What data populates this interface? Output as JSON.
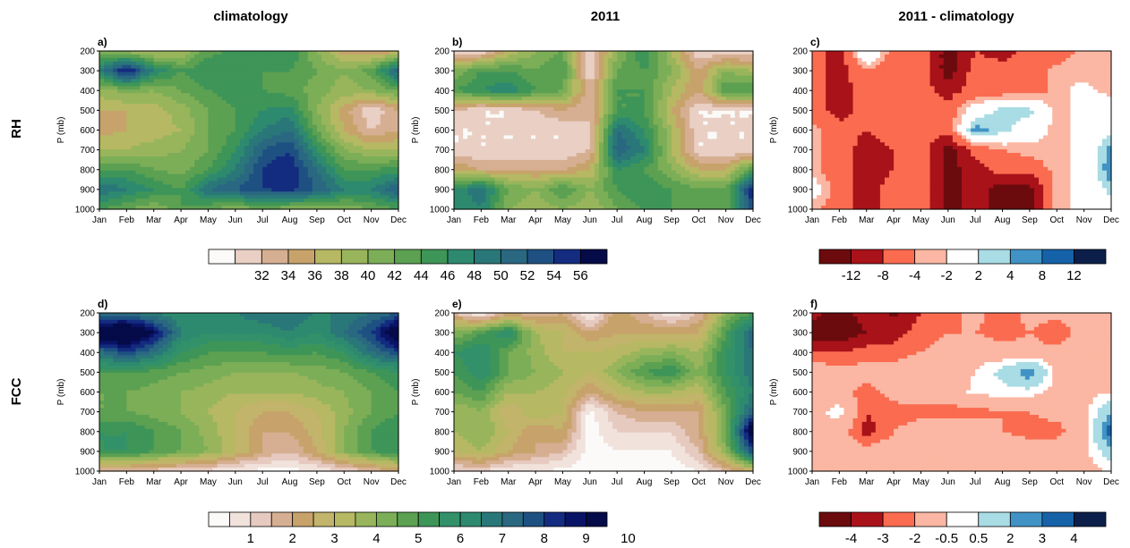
{
  "figure": {
    "column_titles": [
      "climatology",
      "2011",
      "2011 - climatology"
    ],
    "row_labels": [
      "RH",
      "FCC"
    ]
  },
  "scales": {
    "rh": {
      "colors": [
        "#FBFAF8",
        "#E9CFC4",
        "#D6AF92",
        "#C7A36B",
        "#B6B863",
        "#98B55C",
        "#7CAE57",
        "#5CA052",
        "#3E9558",
        "#2E8A6E",
        "#2A7779",
        "#2A6881",
        "#1E5182",
        "#142C80",
        "#050A48"
      ],
      "thresholds": [
        30,
        32,
        34,
        36,
        38,
        40,
        42,
        44,
        46,
        48,
        50,
        52,
        54,
        56
      ],
      "labels": [
        "32",
        "34",
        "36",
        "38",
        "40",
        "42",
        "44",
        "46",
        "48",
        "50",
        "52",
        "54",
        "56"
      ]
    },
    "rh_diff": {
      "colors": [
        "#6B0B0E",
        "#A91219",
        "#FA6B50",
        "#FBB7A3",
        "#FFFFFF",
        "#A9DCE4",
        "#4193C6",
        "#1662A8",
        "#0B1F4A"
      ],
      "thresholds": [
        -12,
        -8,
        -4,
        -2,
        2,
        4,
        8,
        12
      ],
      "labels": [
        "-12",
        "-8",
        "-4",
        "-2",
        "2",
        "4",
        "8",
        "12"
      ]
    },
    "fcc": {
      "colors": [
        "#FBFAF8",
        "#F1E2DC",
        "#E6CAC0",
        "#D6AF92",
        "#C7A36B",
        "#C2B46A",
        "#B6B863",
        "#98B55C",
        "#7CAE57",
        "#5CA052",
        "#3E9558",
        "#33916A",
        "#2E8A6E",
        "#2A7779",
        "#2A6881",
        "#1E5182",
        "#142C80",
        "#0A1466",
        "#050A48"
      ],
      "thresholds": [
        0.5,
        1,
        1.5,
        2,
        2.5,
        3,
        3.5,
        4,
        4.5,
        5,
        5.5,
        6,
        6.5,
        7,
        7.5,
        8,
        8.5,
        9,
        9.5,
        10
      ],
      "labels": [
        "1",
        "2",
        "3",
        "4",
        "5",
        "6",
        "7",
        "8",
        "9",
        "10"
      ]
    },
    "fcc_diff": {
      "colors": [
        "#6B0B0E",
        "#A91219",
        "#FA6B50",
        "#FBB7A3",
        "#FFFFFF",
        "#A9DCE4",
        "#4193C6",
        "#1662A8",
        "#0B1F4A"
      ],
      "thresholds": [
        -4,
        -3,
        -2,
        -0.5,
        0.5,
        2,
        3,
        4
      ],
      "labels": [
        "-4",
        "-3",
        "-2",
        "-0.5",
        "0.5",
        "2",
        "3",
        "4"
      ]
    }
  },
  "chart_data": [
    {
      "panel": "a)",
      "type": "heatmap",
      "variable": "RH",
      "scale": "rh",
      "x": [
        "Jan",
        "Feb",
        "Mar",
        "Apr",
        "May",
        "Jun",
        "Jul",
        "Aug",
        "Sep",
        "Oct",
        "Nov",
        "Dec"
      ],
      "y": [
        200,
        300,
        400,
        500,
        600,
        700,
        800,
        900,
        1000
      ],
      "ylabel": "P (mb)",
      "ylim": [
        200,
        1000
      ],
      "z": [
        [
          41,
          39,
          37,
          38,
          43,
          45,
          44,
          46,
          40,
          35,
          34,
          35
        ],
        [
          48,
          57,
          48,
          44,
          46,
          45,
          44,
          44,
          42,
          40,
          43,
          52
        ],
        [
          39,
          41,
          40,
          42,
          44,
          45,
          44,
          43,
          41,
          39,
          40,
          42
        ],
        [
          36,
          36,
          37,
          39,
          42,
          44,
          46,
          47,
          40,
          35,
          30,
          34
        ],
        [
          35,
          36,
          37,
          38,
          42,
          44,
          48,
          50,
          42,
          36,
          32,
          34
        ],
        [
          38,
          38,
          39,
          40,
          42,
          46,
          52,
          54,
          46,
          40,
          38,
          38
        ],
        [
          44,
          44,
          42,
          41,
          44,
          48,
          54,
          56,
          50,
          44,
          44,
          45
        ],
        [
          50,
          48,
          46,
          44,
          50,
          52,
          54,
          55,
          52,
          48,
          48,
          52
        ],
        [
          44,
          42,
          40,
          44,
          42,
          40,
          42,
          40,
          40,
          40,
          42,
          44
        ]
      ]
    },
    {
      "panel": "b)",
      "type": "heatmap",
      "variable": "RH",
      "scale": "rh",
      "x": [
        "Jan",
        "Feb",
        "Mar",
        "Apr",
        "May",
        "Jun",
        "Jul",
        "Aug",
        "Sep",
        "Oct",
        "Nov",
        "Dec"
      ],
      "y": [
        200,
        300,
        400,
        500,
        600,
        700,
        800,
        900,
        1000
      ],
      "ylabel": "P (mb)",
      "ylim": [
        200,
        1000
      ],
      "z": [
        [
          30,
          30,
          36,
          40,
          42,
          30,
          40,
          46,
          38,
          30,
          30,
          30
        ],
        [
          40,
          44,
          44,
          42,
          44,
          30,
          42,
          44,
          40,
          34,
          40,
          38
        ],
        [
          44,
          46,
          48,
          44,
          42,
          32,
          44,
          44,
          38,
          34,
          44,
          44
        ],
        [
          32,
          30,
          30,
          32,
          34,
          32,
          44,
          44,
          36,
          30,
          30,
          30
        ],
        [
          30,
          30,
          30,
          30,
          30,
          32,
          50,
          46,
          38,
          30,
          30,
          30
        ],
        [
          30,
          30,
          30,
          30,
          30,
          32,
          52,
          48,
          38,
          30,
          30,
          30
        ],
        [
          36,
          34,
          34,
          34,
          34,
          36,
          46,
          44,
          40,
          36,
          36,
          44
        ],
        [
          46,
          50,
          42,
          40,
          44,
          40,
          44,
          46,
          44,
          42,
          42,
          56
        ],
        [
          46,
          48,
          40,
          38,
          40,
          38,
          42,
          44,
          44,
          42,
          42,
          54
        ]
      ]
    },
    {
      "panel": "c)",
      "type": "heatmap",
      "variable": "RH difference",
      "scale": "rh_diff",
      "x": [
        "Jan",
        "Feb",
        "Mar",
        "Apr",
        "May",
        "Jun",
        "Jul",
        "Aug",
        "Sep",
        "Oct",
        "Nov",
        "Dec"
      ],
      "y": [
        200,
        300,
        400,
        500,
        600,
        700,
        800,
        900,
        1000
      ],
      "ylabel": "P (mb)",
      "ylim": [
        200,
        1000
      ],
      "z": [
        [
          -6,
          -10,
          3,
          -6,
          -6,
          -14,
          -8,
          -10,
          -6,
          -6,
          -3,
          -3
        ],
        [
          -6,
          -10,
          -4,
          -6,
          -6,
          -14,
          -6,
          -6,
          -6,
          -3,
          -3,
          -4
        ],
        [
          -6,
          -10,
          -6,
          -6,
          -6,
          -10,
          -6,
          -6,
          -6,
          -3,
          -1,
          -3
        ],
        [
          -6,
          -10,
          -6,
          -4,
          -6,
          -6,
          0,
          3,
          3,
          -3,
          -1,
          1
        ],
        [
          -3,
          -6,
          -8,
          -6,
          -6,
          -6,
          5,
          3,
          0,
          -3,
          -1,
          1
        ],
        [
          -3,
          -6,
          -10,
          -8,
          -6,
          -14,
          -6,
          -4,
          -3,
          -3,
          -1,
          5
        ],
        [
          -3,
          -6,
          -10,
          -8,
          -6,
          -14,
          -10,
          -6,
          -6,
          -3,
          -1,
          6
        ],
        [
          0,
          -6,
          -10,
          -6,
          -6,
          -14,
          -10,
          -14,
          -14,
          -3,
          -1,
          3
        ],
        [
          -3,
          -6,
          -10,
          -6,
          -6,
          -14,
          -10,
          -14,
          -14,
          -3,
          -1,
          1
        ]
      ]
    },
    {
      "panel": "d)",
      "type": "heatmap",
      "variable": "FCC",
      "scale": "fcc",
      "x": [
        "Jan",
        "Feb",
        "Mar",
        "Apr",
        "May",
        "Jun",
        "Jul",
        "Aug",
        "Sep",
        "Oct",
        "Nov",
        "Dec"
      ],
      "y": [
        200,
        300,
        400,
        500,
        600,
        700,
        800,
        900,
        1000
      ],
      "ylabel": "P (mb)",
      "ylim": [
        200,
        1000
      ],
      "z": [
        [
          7,
          7,
          6.5,
          6,
          6.5,
          6.5,
          7,
          7,
          6.5,
          6.5,
          7,
          7.5
        ],
        [
          10,
          10.5,
          9,
          6.5,
          6,
          6,
          6,
          6.5,
          6,
          7,
          8,
          10
        ],
        [
          7,
          8,
          7,
          5.5,
          5,
          5,
          5,
          5.2,
          5,
          5.5,
          7,
          8
        ],
        [
          5,
          5,
          4.8,
          4.5,
          4.3,
          4,
          4,
          4,
          4.2,
          4.5,
          5,
          5.5
        ],
        [
          4.5,
          4.5,
          4.3,
          4,
          3.8,
          3.5,
          3.5,
          3.5,
          3.8,
          4,
          4.5,
          5
        ],
        [
          4.5,
          4.5,
          4.3,
          4,
          3.5,
          3,
          2.5,
          2.5,
          3,
          3.8,
          4.5,
          5
        ],
        [
          5.5,
          5.5,
          5,
          4.5,
          3.8,
          3,
          2,
          2,
          2.8,
          4,
          5,
          5.5
        ],
        [
          5.5,
          5.5,
          5,
          4.5,
          4,
          3,
          2,
          1.5,
          2.5,
          4,
          5,
          5.5
        ],
        [
          1.5,
          1.5,
          1.2,
          1,
          0.8,
          0.5,
          0.3,
          0.3,
          0.5,
          1,
          1.5,
          2
        ]
      ]
    },
    {
      "panel": "e)",
      "type": "heatmap",
      "variable": "FCC",
      "scale": "fcc",
      "x": [
        "Jan",
        "Feb",
        "Mar",
        "Apr",
        "May",
        "Jun",
        "Jul",
        "Aug",
        "Sep",
        "Oct",
        "Nov",
        "Dec"
      ],
      "y": [
        200,
        300,
        400,
        500,
        600,
        700,
        800,
        900,
        1000
      ],
      "ylabel": "P (mb)",
      "ylim": [
        200,
        1000
      ],
      "z": [
        [
          1.5,
          0.3,
          2,
          1.5,
          2,
          0.3,
          2.5,
          1.5,
          0.5,
          1.5,
          4,
          5
        ],
        [
          4,
          5,
          6,
          3.5,
          3,
          2,
          2.5,
          2.5,
          2.5,
          2.5,
          5,
          7.5
        ],
        [
          5.5,
          6,
          4.5,
          3.8,
          3,
          3,
          3.2,
          3.8,
          4,
          3.5,
          5.5,
          7
        ],
        [
          5,
          6,
          4.5,
          4,
          3.5,
          3,
          4,
          5,
          5.5,
          4,
          5.5,
          7
        ],
        [
          4.5,
          5,
          3.5,
          3.5,
          3.2,
          2,
          3,
          3.5,
          3.5,
          3,
          5,
          6.5
        ],
        [
          3.5,
          4,
          2.5,
          3.5,
          3,
          0.3,
          1.5,
          2,
          2,
          2,
          4.5,
          7.5
        ],
        [
          3.5,
          4,
          3,
          2,
          2.5,
          0.2,
          1,
          1,
          1,
          2,
          4.5,
          10
        ],
        [
          3,
          3.5,
          2.5,
          2,
          1.5,
          0.2,
          0.5,
          0.5,
          0.5,
          1.5,
          4,
          8
        ],
        [
          0.8,
          1,
          0.5,
          0.5,
          0.3,
          0.2,
          0.2,
          0.2,
          0.2,
          0.5,
          1.5,
          2.5
        ]
      ]
    },
    {
      "panel": "f)",
      "type": "heatmap",
      "variable": "FCC difference",
      "scale": "fcc_diff",
      "x": [
        "Jan",
        "Feb",
        "Mar",
        "Apr",
        "May",
        "Jun",
        "Jul",
        "Aug",
        "Sep",
        "Oct",
        "Nov",
        "Dec"
      ],
      "y": [
        200,
        300,
        400,
        500,
        600,
        700,
        800,
        900,
        1000
      ],
      "ylabel": "P (mb)",
      "ylim": [
        200,
        1000
      ],
      "z": [
        [
          -3.5,
          -4.5,
          -3.5,
          -4.2,
          -3,
          -2.5,
          -1.5,
          -3,
          -1.5,
          -1.5,
          -1,
          -1.5
        ],
        [
          -5,
          -5,
          -4,
          -3.5,
          -2.5,
          -2,
          -2,
          -2.5,
          -2,
          -3,
          -1.2,
          -1
        ],
        [
          -3,
          -3,
          -2.5,
          -2.5,
          -2,
          -1.5,
          -1,
          -1.5,
          -1.5,
          -1.5,
          -1.2,
          -1
        ],
        [
          -1,
          -1.5,
          -1.5,
          -1.5,
          -1,
          -1,
          -0.5,
          1,
          3,
          -0.8,
          -1,
          -1
        ],
        [
          -1,
          -1.5,
          -2.5,
          -1.5,
          -1.2,
          -1,
          -0.3,
          0,
          0,
          -1,
          -1,
          -0.5
        ],
        [
          -1,
          0,
          -3,
          -2.5,
          -2.5,
          -2.5,
          -2.5,
          -2,
          -2,
          -1.5,
          -1,
          2
        ],
        [
          -1,
          -1.2,
          -3.5,
          -2,
          -1.2,
          -1,
          -1,
          -2,
          -2.5,
          -2.5,
          -1,
          4
        ],
        [
          -1,
          -1.2,
          -1.5,
          -1.2,
          -1,
          -1,
          -1,
          -1,
          -1,
          -1,
          -1,
          1.5
        ],
        [
          -1,
          -1,
          -1,
          -1,
          -1,
          -1,
          -1,
          -1,
          -1,
          -1,
          -1,
          -0.5
        ]
      ]
    }
  ]
}
